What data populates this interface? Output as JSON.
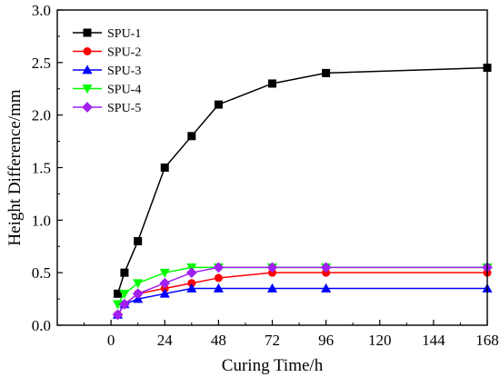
{
  "chart_data": {
    "type": "line",
    "xlabel": "Curing Time/h",
    "ylabel": "Height Difference/mm",
    "xlim": [
      -24,
      168
    ],
    "ylim": [
      0,
      3.0
    ],
    "xticks": [
      0,
      24,
      48,
      72,
      96,
      120,
      144,
      168
    ],
    "xtick_labels": [
      "0",
      "24",
      "48",
      "72",
      "96",
      "120",
      "144",
      "168"
    ],
    "yticks": [
      0,
      0.5,
      1.0,
      1.5,
      2.0,
      2.5,
      3.0
    ],
    "ytick_labels": [
      "0.0",
      "0.5",
      "1.0",
      "1.5",
      "2.0",
      "2.5",
      "3.0"
    ],
    "grid": false,
    "legend_position": "top-left",
    "series": [
      {
        "name": "SPU-1",
        "color": "#000000",
        "marker": "square",
        "x": [
          3,
          6,
          12,
          24,
          36,
          48,
          72,
          96,
          168
        ],
        "y": [
          0.3,
          0.5,
          0.8,
          1.5,
          1.8,
          2.1,
          2.3,
          2.4,
          2.45
        ]
      },
      {
        "name": "SPU-2",
        "color": "#ff0000",
        "marker": "circle",
        "x": [
          3,
          6,
          12,
          24,
          36,
          48,
          72,
          96,
          168
        ],
        "y": [
          0.1,
          0.2,
          0.3,
          0.35,
          0.4,
          0.45,
          0.5,
          0.5,
          0.5
        ]
      },
      {
        "name": "SPU-3",
        "color": "#0000ff",
        "marker": "triangle-up",
        "x": [
          3,
          6,
          12,
          24,
          36,
          48,
          72,
          96,
          168
        ],
        "y": [
          0.1,
          0.2,
          0.25,
          0.3,
          0.35,
          0.35,
          0.35,
          0.35,
          0.35
        ]
      },
      {
        "name": "SPU-4",
        "color": "#00ff00",
        "marker": "triangle-down",
        "x": [
          3,
          6,
          12,
          24,
          36,
          48,
          72,
          96,
          168
        ],
        "y": [
          0.2,
          0.3,
          0.4,
          0.5,
          0.55,
          0.55,
          0.55,
          0.55,
          0.55
        ]
      },
      {
        "name": "SPU-5",
        "color": "#a020f0",
        "marker": "diamond",
        "x": [
          3,
          6,
          12,
          24,
          36,
          48,
          72,
          96,
          168
        ],
        "y": [
          0.1,
          0.2,
          0.3,
          0.4,
          0.5,
          0.55,
          0.55,
          0.55,
          0.55
        ]
      }
    ]
  }
}
